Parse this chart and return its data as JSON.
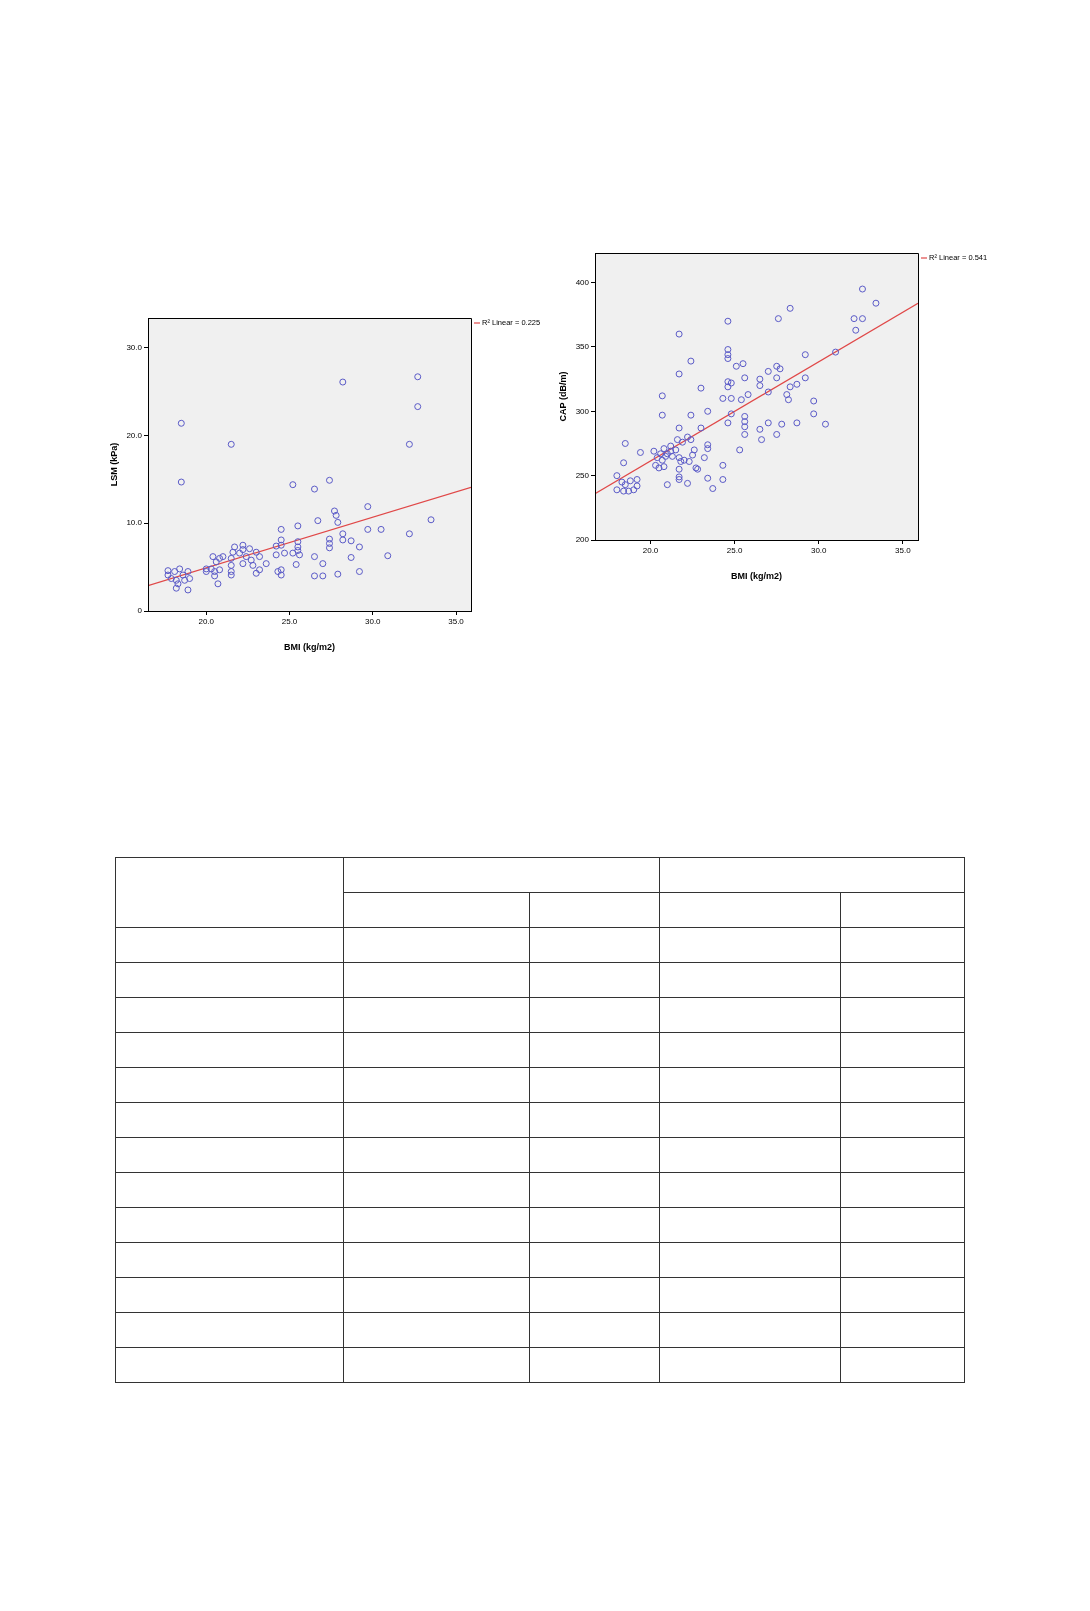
{
  "chart_data": [
    {
      "type": "scatter",
      "xlabel": "BMI (kg/m2)",
      "ylabel": "LSM (kPa)",
      "xlim": [
        16.5,
        35.9
      ],
      "ylim": [
        0,
        33.4
      ],
      "xticks": [
        {
          "value": 20,
          "label": "20.0"
        },
        {
          "value": 25,
          "label": "25.0"
        },
        {
          "value": 30,
          "label": "30.0"
        },
        {
          "value": 35,
          "label": "35.0"
        }
      ],
      "yticks": [
        0,
        {
          "value": 10,
          "label": "10.0"
        },
        {
          "value": 20,
          "label": "20.0"
        },
        {
          "value": 30,
          "label": "30.0"
        }
      ],
      "legend": "top right",
      "marker": "circle",
      "series": [
        {
          "color": "#5b5bc8",
          "x": [
            18.5,
            18.5,
            21.5,
            28.2,
            32.7,
            32.7,
            32.2,
            25.2,
            26.5,
            27.4,
            29.7,
            33.5,
            32.2,
            30.9,
            27.7,
            27.8,
            26.7,
            25.5,
            24.5,
            27.9,
            29.7,
            30.5,
            29.2,
            28.7,
            29.2,
            27.9,
            28.2,
            28.2,
            28.7,
            27.4,
            27.4,
            27.4,
            26.5,
            27.0,
            26.5,
            27.0,
            25.5,
            25.5,
            25.5,
            25.6,
            25.4,
            24.5,
            24.5,
            24.2,
            24.7,
            25.2,
            24.2,
            24.5,
            24.5,
            24.3,
            23.6,
            23.2,
            23.0,
            22.6,
            23.0,
            23.2,
            22.2,
            22.2,
            21.7,
            21.6,
            22.0,
            22.4,
            22.7,
            22.2,
            22.8,
            21.5,
            21.5,
            21.5,
            21.5,
            20.4,
            20.6,
            20.8,
            21.0,
            20.0,
            20.3,
            20.5,
            20.8,
            20.0,
            20.5,
            20.7,
            17.7,
            17.7,
            17.9,
            18.1,
            18.4,
            18.6,
            18.9,
            19.0,
            18.2,
            18.3,
            18.2,
            18.9,
            18.7
          ],
          "values": [
            21.4,
            14.7,
            19.0,
            26.1,
            26.7,
            23.3,
            19.0,
            14.4,
            13.9,
            14.9,
            11.9,
            10.4,
            8.8,
            6.3,
            11.4,
            10.9,
            10.3,
            9.7,
            9.3,
            10.1,
            9.3,
            9.3,
            7.3,
            6.1,
            4.5,
            4.2,
            8.8,
            8.1,
            8.0,
            8.2,
            7.7,
            7.2,
            6.2,
            5.4,
            4.0,
            4.0,
            7.9,
            7.3,
            6.9,
            6.4,
            5.3,
            8.1,
            7.5,
            7.4,
            6.6,
            6.6,
            6.4,
            4.7,
            4.1,
            4.5,
            5.4,
            4.7,
            4.3,
            7.1,
            6.7,
            6.2,
            7.5,
            7.0,
            7.3,
            6.7,
            6.6,
            6.2,
            5.8,
            5.4,
            5.2,
            6.0,
            5.2,
            4.5,
            4.1,
            6.2,
            5.6,
            6.0,
            6.2,
            4.8,
            4.8,
            4.5,
            4.7,
            4.5,
            4.0,
            3.1,
            4.6,
            4.1,
            3.7,
            4.5,
            4.8,
            4.1,
            4.5,
            3.7,
            3.5,
            3.1,
            2.6,
            2.4,
            3.5
          ]
        },
        {
          "type": "line",
          "marker": "none",
          "name": "R² Linear = 0.225",
          "color": "#e04848",
          "x": [
            16.5,
            35.9
          ],
          "values": [
            2.9,
            14.1
          ]
        }
      ]
    },
    {
      "type": "scatter",
      "xlabel": "BMI (kg/m2)",
      "ylabel": "CAP (dB/m)",
      "xlim": [
        16.7,
        35.9
      ],
      "ylim": [
        200,
        423
      ],
      "xticks": [
        {
          "value": 20,
          "label": "20.0"
        },
        {
          "value": 25,
          "label": "25.0"
        },
        {
          "value": 30,
          "label": "30.0"
        },
        {
          "value": 35,
          "label": "35.0"
        }
      ],
      "yticks": [
        200,
        250,
        300,
        350,
        400
      ],
      "legend": "top right",
      "marker": "circle",
      "series": [
        {
          "color": "#5b5bc8",
          "x": [
            32.6,
            33.4,
            32.1,
            32.6,
            32.2,
            28.3,
            27.6,
            24.6,
            21.7,
            22.4,
            21.7,
            24.6,
            24.6,
            24.6,
            25.1,
            25.5,
            27.0,
            27.5,
            27.7,
            29.2,
            31.0,
            29.2,
            28.7,
            28.3,
            27.5,
            26.5,
            26.5,
            25.6,
            24.6,
            24.8,
            24.6,
            23.0,
            20.7,
            24.3,
            24.8,
            25.4,
            25.8,
            27.0,
            28.1,
            28.2,
            29.7,
            29.7,
            30.4,
            28.7,
            27.8,
            27.5,
            27.0,
            26.5,
            26.6,
            25.6,
            25.6,
            25.6,
            25.6,
            25.3,
            24.8,
            24.6,
            23.4,
            22.4,
            20.7,
            23.0,
            21.7,
            22.2,
            22.4,
            21.9,
            23.4,
            23.4,
            22.6,
            22.5,
            23.2,
            21.6,
            21.2,
            20.8,
            21.0,
            20.6,
            20.2,
            21.2,
            21.5,
            21.3,
            20.4,
            20.7,
            20.9,
            20.3,
            20.5,
            20.8,
            21.7,
            21.8,
            22.0,
            22.3,
            21.7,
            21.7,
            21.7,
            22.2,
            21.0,
            22.7,
            22.8,
            23.4,
            23.7,
            24.3,
            24.3,
            19.4,
            18.5,
            18.4,
            18.0,
            18.3,
            18.5,
            18.8,
            19.2,
            18.0,
            18.4,
            18.7,
            19.0,
            19.2
          ],
          "values": [
            395,
            384,
            372,
            372,
            363,
            380,
            372,
            370,
            360,
            339,
            329,
            348,
            344,
            341,
            335,
            337,
            331,
            335,
            333,
            344,
            346,
            326,
            321,
            319,
            326,
            325,
            320,
            326,
            323,
            322,
            319,
            318,
            312,
            310,
            310,
            309,
            313,
            315,
            313,
            309,
            308,
            298,
            290,
            291,
            290,
            282,
            291,
            286,
            278,
            296,
            292,
            288,
            282,
            270,
            298,
            291,
            300,
            297,
            297,
            287,
            287,
            280,
            278,
            276,
            274,
            271,
            270,
            266,
            264,
            278,
            273,
            271,
            267,
            267,
            269,
            269,
            270,
            265,
            264,
            262,
            265,
            258,
            256,
            257,
            264,
            261,
            262,
            261,
            255,
            249,
            247,
            244,
            243,
            256,
            255,
            248,
            240,
            258,
            247,
            268,
            275,
            260,
            250,
            245,
            243,
            246,
            247,
            239,
            238,
            238,
            239,
            242
          ]
        },
        {
          "type": "line",
          "marker": "none",
          "name": "R² Linear = 0.541",
          "color": "#e04848",
          "x": [
            16.7,
            35.9
          ],
          "values": [
            236,
            384
          ]
        }
      ]
    }
  ]
}
